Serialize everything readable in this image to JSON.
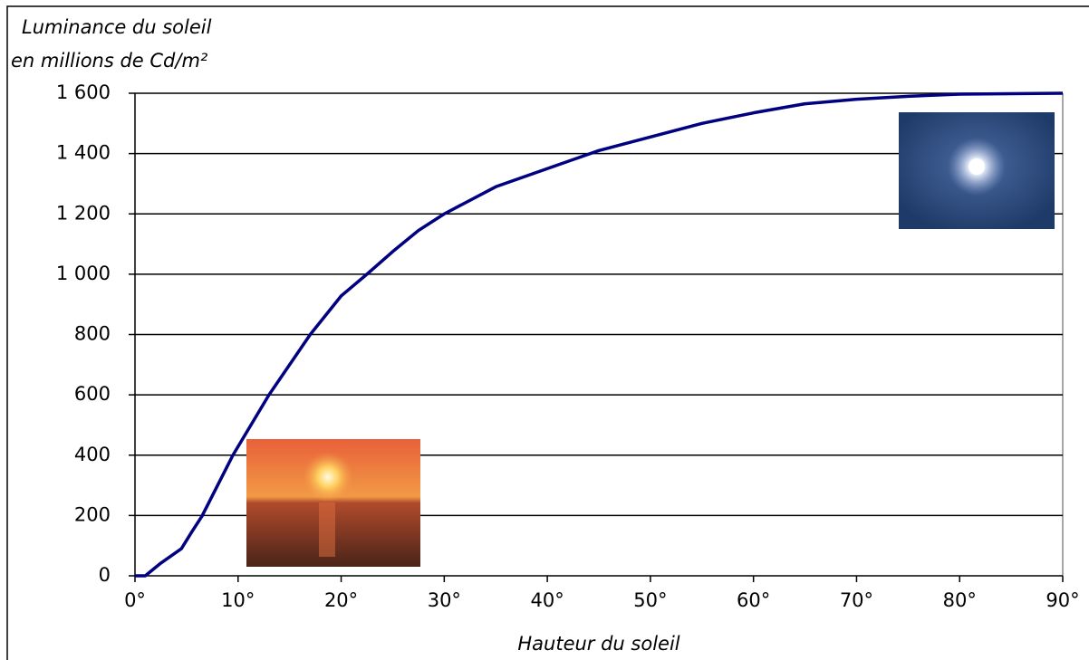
{
  "chart_data": {
    "type": "line",
    "ylabel": [
      "Luminance du soleil",
      "en millions de Cd/m²"
    ],
    "xlabel": "Hauteur du soleil",
    "x": [
      0,
      1,
      2.5,
      4.5,
      5.5,
      6.5,
      9.5,
      13,
      17,
      20,
      22.5,
      25,
      27.5,
      30,
      35,
      40,
      45,
      50,
      55,
      60,
      65,
      70,
      75,
      80,
      90
    ],
    "series": [
      {
        "color": "#000080",
        "values": [
          0,
          0,
          42,
          90,
          145,
          198,
          400,
          600,
          800,
          928,
          1000,
          1075,
          1145,
          1200,
          1290,
          1350,
          1410,
          1455,
          1500,
          1535,
          1565,
          1580,
          1590,
          1597,
          1600
        ]
      }
    ],
    "xlim": [
      0,
      90
    ],
    "xticks": [
      {
        "value": 0,
        "label": "0°"
      },
      {
        "value": 10,
        "label": "10°"
      },
      {
        "value": 20,
        "label": "20°"
      },
      {
        "value": 30,
        "label": "30°"
      },
      {
        "value": 40,
        "label": "40°"
      },
      {
        "value": 50,
        "label": "50°"
      },
      {
        "value": 60,
        "label": "60°"
      },
      {
        "value": 70,
        "label": "70°"
      },
      {
        "value": 80,
        "label": "80°"
      },
      {
        "value": 90,
        "label": "90°"
      }
    ],
    "ylim": [
      0,
      1600
    ],
    "yticks": [
      0,
      200,
      400,
      600,
      800,
      {
        "value": 1000,
        "label": "1 000"
      },
      {
        "value": 1200,
        "label": "1 200"
      },
      {
        "value": 1400,
        "label": "1 400"
      },
      {
        "value": 1600,
        "label": "1 600"
      }
    ],
    "grid": true
  }
}
